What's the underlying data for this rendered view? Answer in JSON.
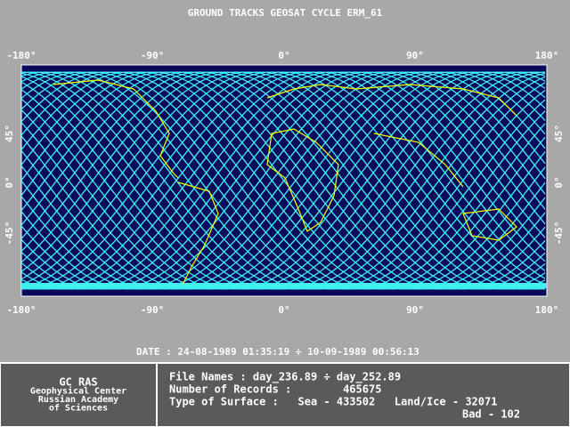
{
  "title": "GROUND TRACKS GEOSAT CYCLE ERM_61",
  "lon_labels": [
    "-180°",
    "-90°",
    "0°",
    "90°",
    "180°"
  ],
  "lat_labels": [
    "45°",
    "0°",
    "-45°"
  ],
  "date": "DATE : 24-08-1989 01:35:19 ÷ 10-09-1989 00:56:13",
  "institution": [
    "GC RAS",
    "Geophysical Center",
    "Russian Academy",
    "of Sciences"
  ],
  "info": [
    "File Names : day_236.89 ÷ day_252.89",
    "Number of Records :        465675",
    "Type of Surface :   Sea - 433502   Land/Ice - 32071",
    "Bad - 102"
  ]
}
